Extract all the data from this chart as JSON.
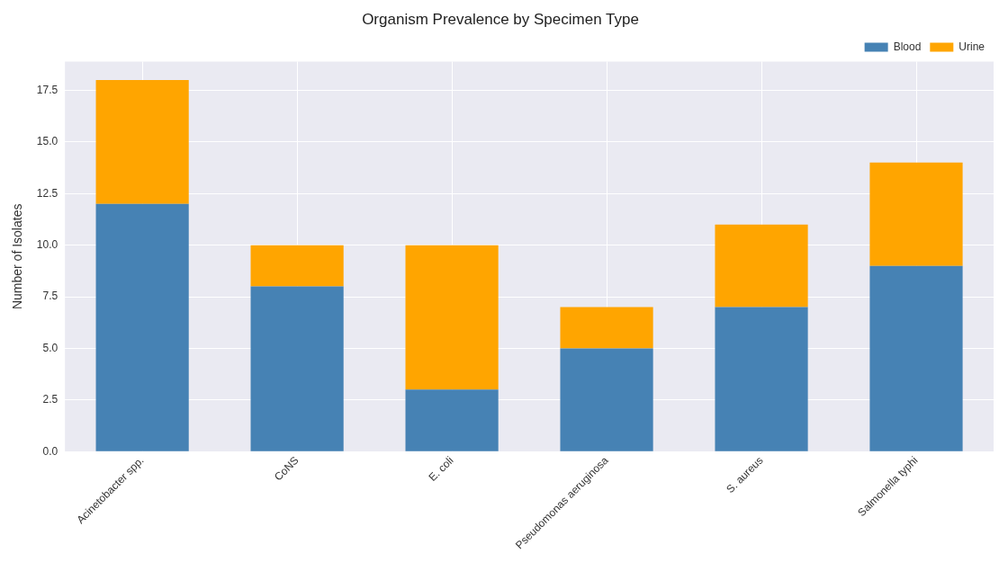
{
  "chart_data": {
    "type": "bar",
    "title": "Organism Prevalence by Specimen Type",
    "ylabel": "Number of Isolates",
    "categories": [
      "Acinetobacter spp.",
      "CoNS",
      "E. coli",
      "Pseudomonas aeruginosa",
      "S. aureus",
      "Salmonella typhi"
    ],
    "series": [
      {
        "name": "Blood",
        "color": "#4682b4",
        "values": [
          12,
          8,
          3,
          5,
          7,
          9
        ]
      },
      {
        "name": "Urine",
        "color": "#ffa500",
        "values": [
          6,
          2,
          7,
          2,
          4,
          5
        ]
      }
    ],
    "stacked": true,
    "ylim": [
      0,
      18.9
    ],
    "yticks": [
      {
        "value": 0,
        "label": "0.0"
      },
      2.5,
      {
        "value": 5,
        "label": "5.0"
      },
      7.5,
      {
        "value": 10,
        "label": "10.0"
      },
      12.5,
      {
        "value": 15,
        "label": "15.0"
      },
      17.5
    ],
    "grid": true,
    "legend": "top right"
  }
}
